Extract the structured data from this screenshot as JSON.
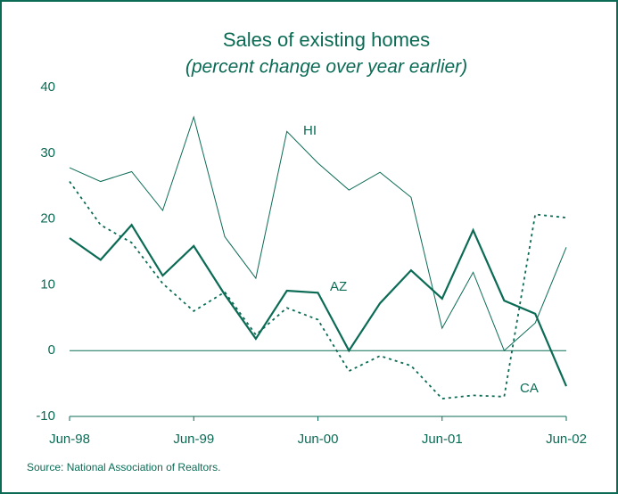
{
  "chart_data": {
    "type": "line",
    "title": "Sales of existing homes",
    "subtitle": "(percent change over year earlier)",
    "source": "Source: National Association of Realtors.",
    "categories": [
      "Jun-98",
      null,
      null,
      null,
      "Jun-99",
      null,
      null,
      null,
      "Jun-00",
      null,
      null,
      null,
      "Jun-01",
      null,
      null,
      null,
      "Jun-02"
    ],
    "series": [
      {
        "name": "HI",
        "color": "#0b6b55",
        "style": "thin",
        "values": [
          27.8,
          25.7,
          27.2,
          21.3,
          35.5,
          17.3,
          11,
          33.3,
          28.5,
          24.4,
          27.1,
          23.3,
          3.4,
          11.9,
          0,
          4.2,
          15.7
        ]
      },
      {
        "name": "AZ",
        "color": "#0b6b55",
        "style": "thick",
        "values": [
          17.1,
          13.8,
          19.1,
          11.4,
          15.9,
          8.5,
          1.8,
          9.1,
          8.8,
          0,
          7.2,
          12.2,
          7.9,
          18.3,
          7.6,
          5.6,
          -5.4
        ]
      },
      {
        "name": "CA",
        "color": "#0b6b55",
        "style": "dotted",
        "values": [
          25.7,
          19.1,
          16.4,
          10.2,
          6.0,
          8.9,
          2.4,
          6.5,
          4.7,
          -3.1,
          -0.8,
          -2.3,
          -7.3,
          -6.8,
          -7.0,
          20.7,
          20.2
        ]
      }
    ],
    "ylim": [
      -10,
      40
    ],
    "yticks": [
      -10,
      0,
      10,
      20,
      30,
      40
    ],
    "grid": false
  }
}
